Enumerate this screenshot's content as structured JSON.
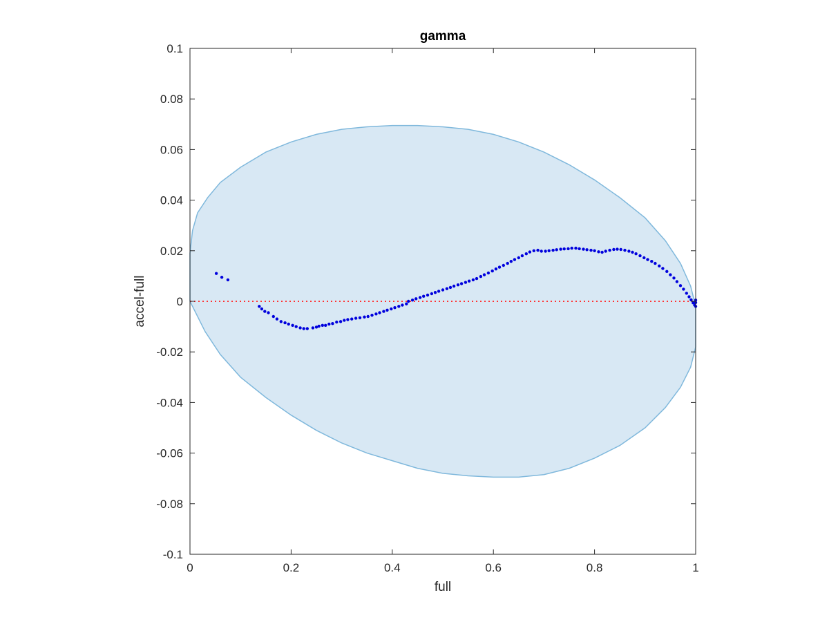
{
  "chart_data": {
    "type": "scatter",
    "title": "gamma",
    "xlabel": "full",
    "ylabel": "accel-full",
    "xlim": [
      0,
      1
    ],
    "ylim": [
      -0.1,
      0.1
    ],
    "xticks": [
      0,
      0.2,
      0.4,
      0.6,
      0.8,
      1
    ],
    "xtick_labels": [
      "0",
      "0.2",
      "0.4",
      "0.6",
      "0.8",
      "1"
    ],
    "yticks": [
      -0.1,
      -0.08,
      -0.06,
      -0.04,
      -0.02,
      0,
      0.02,
      0.04,
      0.06,
      0.08,
      0.1
    ],
    "ytick_labels": [
      "-0.1",
      "-0.08",
      "-0.06",
      "-0.04",
      "-0.02",
      "0",
      "0.02",
      "0.04",
      "0.06",
      "0.08",
      "0.1"
    ],
    "grid": false,
    "reference_line": {
      "y": 0,
      "style": "dotted",
      "color": "#ff3333"
    },
    "region": {
      "shape": "closed-curve",
      "fill": "#d8e8f4",
      "stroke": "#7fb8dc",
      "points": [
        [
          0,
          0.019
        ],
        [
          0.005,
          0.028
        ],
        [
          0.015,
          0.035
        ],
        [
          0.035,
          0.041
        ],
        [
          0.06,
          0.047
        ],
        [
          0.1,
          0.053
        ],
        [
          0.15,
          0.059
        ],
        [
          0.2,
          0.063
        ],
        [
          0.25,
          0.066
        ],
        [
          0.3,
          0.068
        ],
        [
          0.35,
          0.069
        ],
        [
          0.4,
          0.0695
        ],
        [
          0.45,
          0.0695
        ],
        [
          0.5,
          0.069
        ],
        [
          0.55,
          0.068
        ],
        [
          0.6,
          0.066
        ],
        [
          0.65,
          0.063
        ],
        [
          0.7,
          0.059
        ],
        [
          0.75,
          0.054
        ],
        [
          0.8,
          0.048
        ],
        [
          0.85,
          0.041
        ],
        [
          0.9,
          0.033
        ],
        [
          0.94,
          0.024
        ],
        [
          0.97,
          0.015
        ],
        [
          0.99,
          0.006
        ],
        [
          1.0,
          -0.002
        ],
        [
          1.0,
          -0.018
        ],
        [
          0.99,
          -0.026
        ],
        [
          0.97,
          -0.034
        ],
        [
          0.94,
          -0.042
        ],
        [
          0.9,
          -0.05
        ],
        [
          0.85,
          -0.057
        ],
        [
          0.8,
          -0.062
        ],
        [
          0.75,
          -0.066
        ],
        [
          0.7,
          -0.0685
        ],
        [
          0.65,
          -0.0695
        ],
        [
          0.6,
          -0.0695
        ],
        [
          0.55,
          -0.069
        ],
        [
          0.5,
          -0.068
        ],
        [
          0.45,
          -0.066
        ],
        [
          0.4,
          -0.063
        ],
        [
          0.35,
          -0.06
        ],
        [
          0.3,
          -0.056
        ],
        [
          0.25,
          -0.051
        ],
        [
          0.2,
          -0.045
        ],
        [
          0.15,
          -0.038
        ],
        [
          0.1,
          -0.03
        ],
        [
          0.06,
          -0.021
        ],
        [
          0.03,
          -0.012
        ],
        [
          0.01,
          -0.004
        ],
        [
          0,
          0.0
        ]
      ]
    },
    "series": [
      {
        "color": "#0000dd",
        "points": [
          [
            0.052,
            0.011
          ],
          [
            0.063,
            0.0095
          ],
          [
            0.075,
            0.0085
          ],
          [
            0.137,
            -0.002
          ],
          [
            0.142,
            -0.003
          ],
          [
            0.148,
            -0.004
          ],
          [
            0.155,
            -0.0045
          ],
          [
            0.165,
            -0.006
          ],
          [
            0.172,
            -0.007
          ],
          [
            0.18,
            -0.008
          ],
          [
            0.188,
            -0.0085
          ],
          [
            0.195,
            -0.009
          ],
          [
            0.203,
            -0.0095
          ],
          [
            0.21,
            -0.01
          ],
          [
            0.218,
            -0.0105
          ],
          [
            0.225,
            -0.0108
          ],
          [
            0.232,
            -0.0108
          ],
          [
            0.243,
            -0.0105
          ],
          [
            0.25,
            -0.0102
          ],
          [
            0.255,
            -0.0098
          ],
          [
            0.262,
            -0.0095
          ],
          [
            0.268,
            -0.0095
          ],
          [
            0.275,
            -0.009
          ],
          [
            0.282,
            -0.0088
          ],
          [
            0.29,
            -0.0082
          ],
          [
            0.298,
            -0.008
          ],
          [
            0.305,
            -0.0075
          ],
          [
            0.312,
            -0.0072
          ],
          [
            0.32,
            -0.007
          ],
          [
            0.328,
            -0.0067
          ],
          [
            0.336,
            -0.0065
          ],
          [
            0.345,
            -0.0062
          ],
          [
            0.352,
            -0.006
          ],
          [
            0.36,
            -0.0055
          ],
          [
            0.368,
            -0.005
          ],
          [
            0.375,
            -0.0045
          ],
          [
            0.383,
            -0.004
          ],
          [
            0.39,
            -0.0035
          ],
          [
            0.398,
            -0.003
          ],
          [
            0.405,
            -0.0025
          ],
          [
            0.413,
            -0.002
          ],
          [
            0.42,
            -0.0015
          ],
          [
            0.428,
            -0.001
          ],
          [
            0.432,
            0.0
          ],
          [
            0.44,
            0.0005
          ],
          [
            0.447,
            0.001
          ],
          [
            0.455,
            0.0015
          ],
          [
            0.462,
            0.002
          ],
          [
            0.47,
            0.0025
          ],
          [
            0.478,
            0.003
          ],
          [
            0.485,
            0.0035
          ],
          [
            0.492,
            0.004
          ],
          [
            0.5,
            0.0045
          ],
          [
            0.508,
            0.005
          ],
          [
            0.515,
            0.0055
          ],
          [
            0.522,
            0.006
          ],
          [
            0.53,
            0.0065
          ],
          [
            0.537,
            0.007
          ],
          [
            0.545,
            0.0075
          ],
          [
            0.552,
            0.008
          ],
          [
            0.56,
            0.0085
          ],
          [
            0.567,
            0.009
          ],
          [
            0.575,
            0.0098
          ],
          [
            0.582,
            0.0105
          ],
          [
            0.59,
            0.0112
          ],
          [
            0.598,
            0.012
          ],
          [
            0.605,
            0.0128
          ],
          [
            0.612,
            0.0135
          ],
          [
            0.62,
            0.0142
          ],
          [
            0.628,
            0.015
          ],
          [
            0.635,
            0.0158
          ],
          [
            0.642,
            0.0165
          ],
          [
            0.65,
            0.0172
          ],
          [
            0.657,
            0.018
          ],
          [
            0.665,
            0.0188
          ],
          [
            0.672,
            0.0195
          ],
          [
            0.68,
            0.02
          ],
          [
            0.688,
            0.0202
          ],
          [
            0.695,
            0.0198
          ],
          [
            0.703,
            0.0198
          ],
          [
            0.71,
            0.02
          ],
          [
            0.718,
            0.0202
          ],
          [
            0.725,
            0.0204
          ],
          [
            0.733,
            0.0206
          ],
          [
            0.74,
            0.0207
          ],
          [
            0.748,
            0.0208
          ],
          [
            0.755,
            0.021
          ],
          [
            0.763,
            0.021
          ],
          [
            0.77,
            0.0208
          ],
          [
            0.778,
            0.0206
          ],
          [
            0.785,
            0.0204
          ],
          [
            0.793,
            0.0202
          ],
          [
            0.8,
            0.02
          ],
          [
            0.808,
            0.0196
          ],
          [
            0.815,
            0.0194
          ],
          [
            0.822,
            0.0198
          ],
          [
            0.83,
            0.0202
          ],
          [
            0.838,
            0.0205
          ],
          [
            0.845,
            0.0206
          ],
          [
            0.852,
            0.0205
          ],
          [
            0.86,
            0.0202
          ],
          [
            0.868,
            0.0198
          ],
          [
            0.875,
            0.0194
          ],
          [
            0.882,
            0.0188
          ],
          [
            0.89,
            0.018
          ],
          [
            0.898,
            0.0172
          ],
          [
            0.905,
            0.0165
          ],
          [
            0.913,
            0.0158
          ],
          [
            0.92,
            0.015
          ],
          [
            0.928,
            0.014
          ],
          [
            0.935,
            0.013
          ],
          [
            0.943,
            0.0118
          ],
          [
            0.95,
            0.0105
          ],
          [
            0.957,
            0.0092
          ],
          [
            0.963,
            0.0078
          ],
          [
            0.97,
            0.0062
          ],
          [
            0.976,
            0.0048
          ],
          [
            0.982,
            0.0032
          ],
          [
            0.987,
            0.0018
          ],
          [
            0.991,
            0.0006
          ],
          [
            0.995,
            -0.0006
          ],
          [
            0.998,
            -0.0015
          ],
          [
            1.0,
            -0.002
          ],
          [
            1.0,
            -0.0005
          ],
          [
            1.0,
            0.0005
          ]
        ]
      }
    ]
  }
}
